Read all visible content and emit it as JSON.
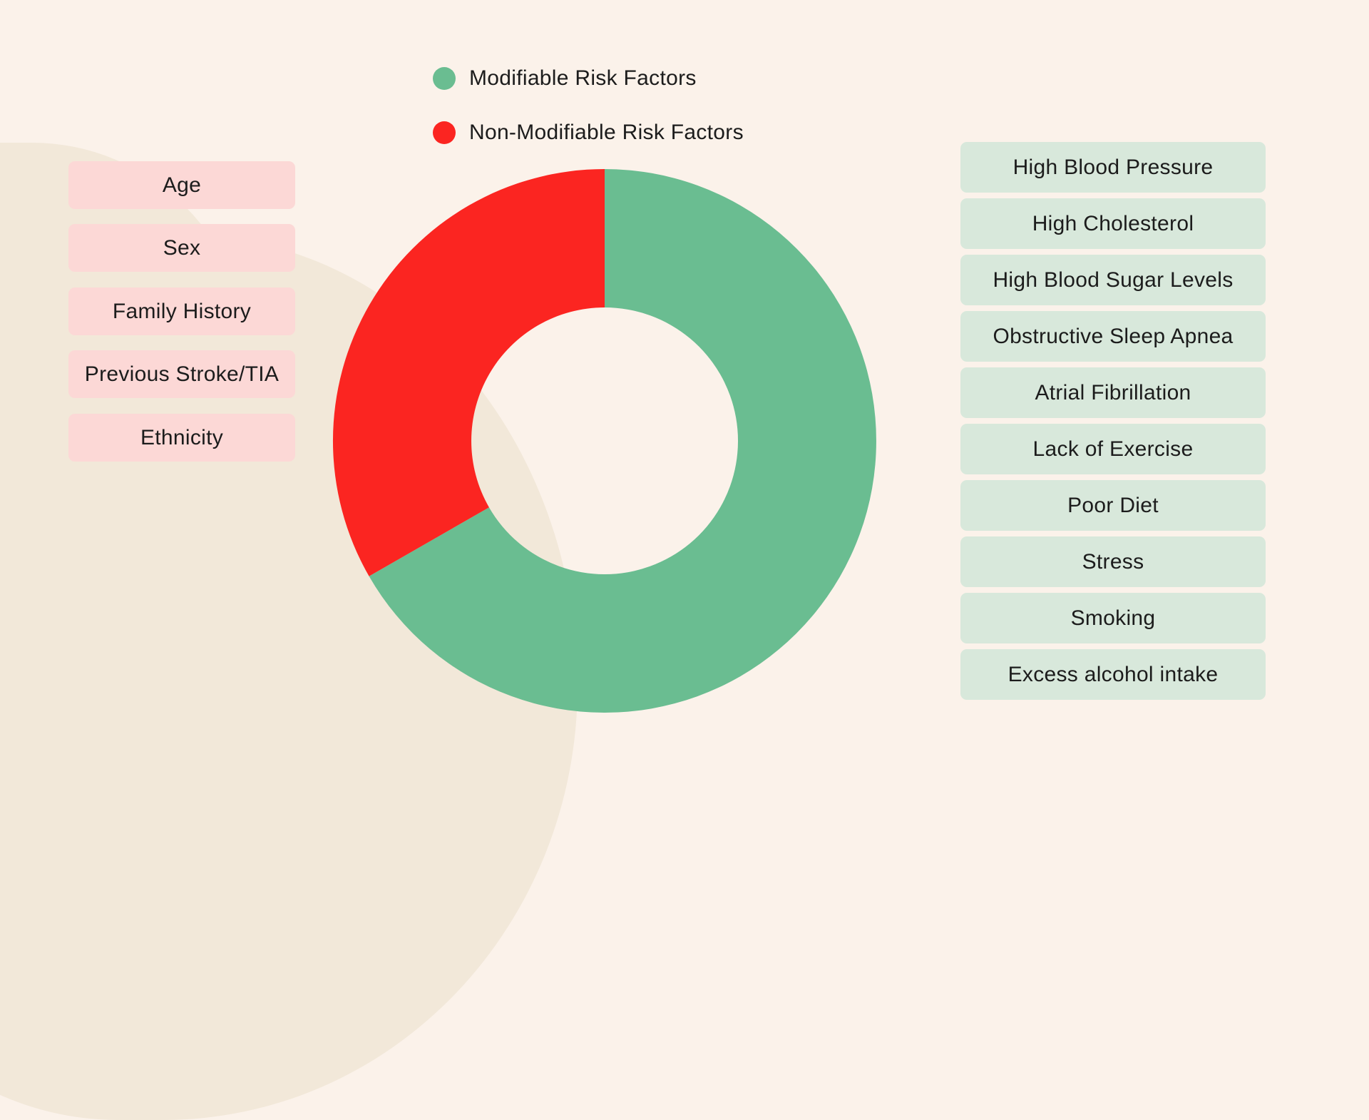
{
  "colors": {
    "canvas": "#FBF2EA",
    "blob": "#F2E8D9",
    "green": "#6ABD91",
    "red": "#FB2521",
    "pink": "#FCD8D6",
    "mint": "#D8E8DB",
    "text": "#1C1C1C"
  },
  "legend": {
    "items": [
      {
        "label": "Modifiable Risk Factors",
        "color": "#6ABD91"
      },
      {
        "label": "Non-Modifiable Risk Factors",
        "color": "#FB2521"
      }
    ]
  },
  "chart_data": {
    "type": "pie",
    "subtype": "donut",
    "labels": [
      "Modifiable Risk Factors",
      "Non-Modifiable Risk Factors"
    ],
    "values": [
      66.7,
      33.3
    ],
    "unit": "percent (estimated from arc angles: 240° green, 120° red)",
    "colors": [
      "#6ABD91",
      "#FB2521"
    ],
    "start_angle_deg": 0,
    "direction": "clockwise",
    "donut_hole_ratio": 0.49,
    "data_labels": "none",
    "legend_position": "top, left of chart apex",
    "title": ""
  },
  "non_modifiable_factors": {
    "items": [
      "Age",
      "Sex",
      "Family History",
      "Previous Stroke/TIA",
      "Ethnicity"
    ]
  },
  "modifiable_factors": {
    "items": [
      "High Blood Pressure",
      "High Cholesterol",
      "High Blood Sugar Levels",
      "Obstructive Sleep Apnea",
      "Atrial Fibrillation",
      "Lack of Exercise",
      "Poor Diet",
      "Stress",
      "Smoking",
      "Excess alcohol intake"
    ]
  }
}
